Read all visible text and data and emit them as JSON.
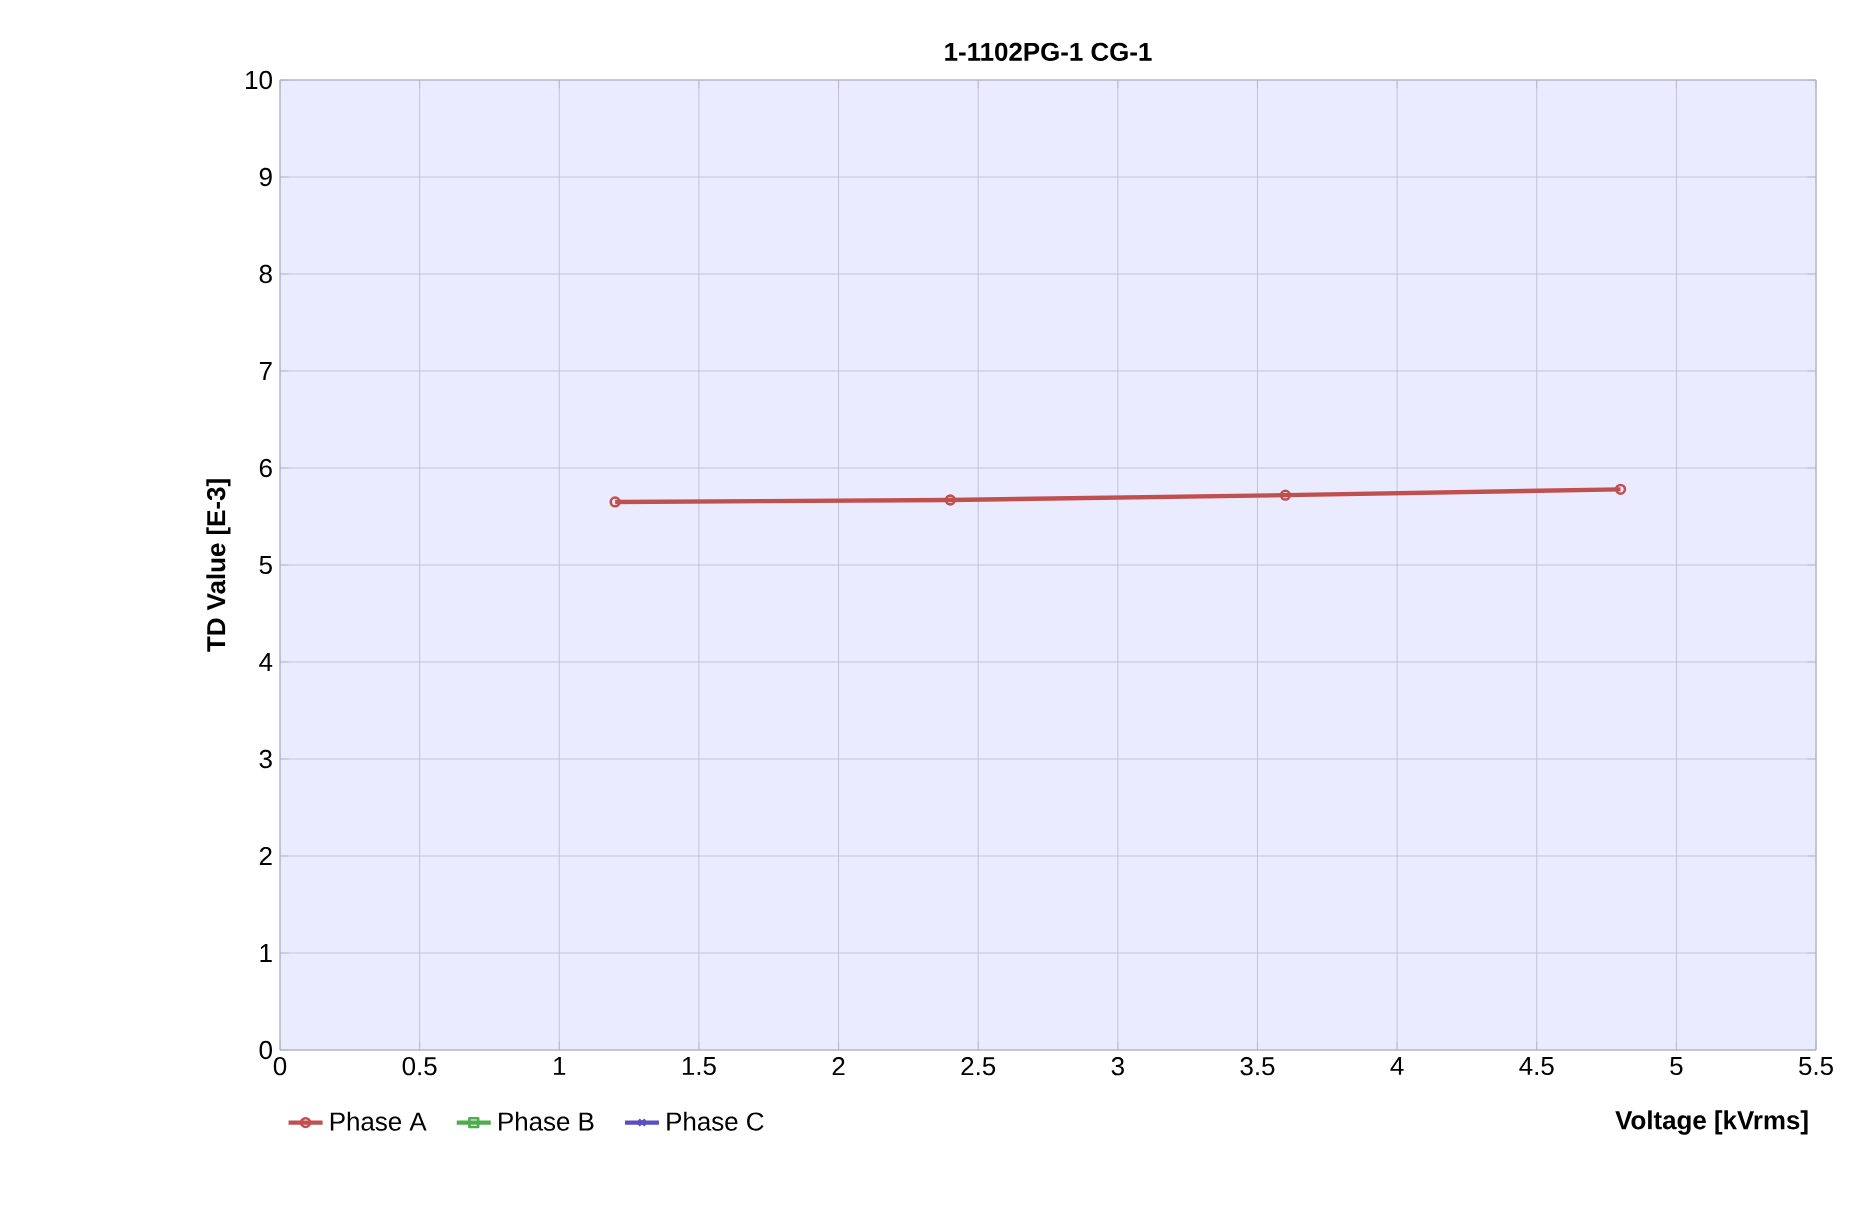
{
  "chart_data": {
    "type": "line",
    "title": "1-1102PG-1 CG-1",
    "xlabel": "Voltage [kVrms]",
    "ylabel": "TD Value [E-3]",
    "x": [
      1.2,
      2.4,
      3.6,
      4.8
    ],
    "series": [
      {
        "name": "Phase A",
        "color": "#c0504d",
        "marker": "circle",
        "values": [
          5.65,
          5.67,
          5.72,
          5.78
        ]
      },
      {
        "name": "Phase B",
        "color": "#4eac4e",
        "marker": "square",
        "values": [
          null,
          null,
          null,
          null
        ]
      },
      {
        "name": "Phase C",
        "color": "#5a4fc0",
        "marker": "cross",
        "values": [
          null,
          null,
          null,
          null
        ]
      }
    ],
    "xlim": [
      0,
      5.5
    ],
    "xticks": [
      0,
      0.5,
      1,
      1.5,
      2,
      2.5,
      3,
      3.5,
      4,
      4.5,
      5,
      5.5
    ],
    "ylim": [
      0,
      10
    ],
    "yticks": [
      0,
      1,
      2,
      3,
      4,
      5,
      6,
      7,
      8,
      9,
      10
    ],
    "grid": true,
    "legend": "bottom left",
    "line_style": "solid"
  }
}
